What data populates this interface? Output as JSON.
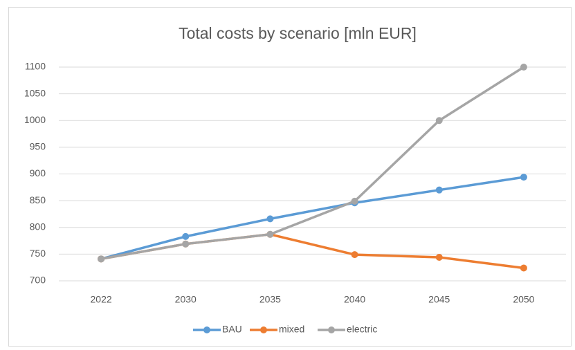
{
  "chart_data": {
    "type": "line",
    "title": "Total costs by scenario [mln EUR]",
    "categories": [
      "2022",
      "2030",
      "2035",
      "2040",
      "2045",
      "2050"
    ],
    "series": [
      {
        "name": "BAU",
        "color": "#5b9bd5",
        "values": [
          741,
          783,
          816,
          846,
          870,
          894
        ]
      },
      {
        "name": "mixed",
        "color": "#ed7d31",
        "values": [
          741,
          769,
          787,
          749,
          744,
          724
        ]
      },
      {
        "name": "electric",
        "color": "#a5a5a5",
        "values": [
          741,
          769,
          787,
          849,
          1000,
          1100
        ]
      }
    ],
    "ylim": [
      700,
      1100
    ],
    "yticks": [
      700,
      750,
      800,
      850,
      900,
      950,
      1000,
      1050,
      1100
    ],
    "grid": true,
    "legend": "bottom"
  }
}
